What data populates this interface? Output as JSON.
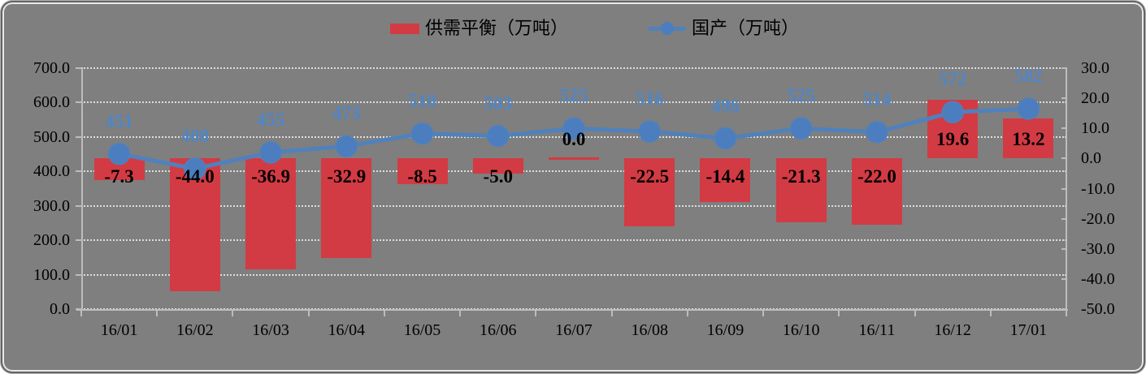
{
  "legend": {
    "items": [
      {
        "label": "供需平衡（万吨）",
        "type": "bar"
      },
      {
        "label": "国产（万吨）",
        "type": "line"
      }
    ]
  },
  "chart_data": {
    "type": "combo",
    "categories": [
      "16/01",
      "16/02",
      "16/03",
      "16/04",
      "16/05",
      "16/06",
      "16/07",
      "16/08",
      "16/09",
      "16/10",
      "16/11",
      "16/12",
      "17/01"
    ],
    "series": [
      {
        "name": "供需平衡（万吨）",
        "type": "bar",
        "axis": "right",
        "values": [
          -7.3,
          -44.0,
          -36.9,
          -32.9,
          -8.5,
          -5.0,
          0.0,
          -22.5,
          -14.4,
          -21.3,
          -22.0,
          19.6,
          13.2
        ],
        "label_decimals": 1
      },
      {
        "name": "国产（万吨）",
        "type": "line",
        "axis": "left",
        "values": [
          451,
          408,
          455,
          473,
          510,
          503,
          525,
          516,
          496,
          525,
          514,
          572,
          582
        ],
        "label_decimals": 0
      }
    ],
    "left_axis": {
      "min": 0,
      "max": 700,
      "step": 100,
      "tick_labels": [
        "0.0",
        "100.0",
        "200.0",
        "300.0",
        "400.0",
        "500.0",
        "600.0",
        "700.0"
      ]
    },
    "right_axis": {
      "min": -50,
      "max": 30,
      "step": 10,
      "tick_labels": [
        "-50.0",
        "-40.0",
        "-30.0",
        "-20.0",
        "-10.0",
        "0.0",
        "10.0",
        "20.0",
        "30.0"
      ]
    },
    "grid": true,
    "legend_position": "top-center"
  },
  "colors": {
    "background": "#7F7F7F",
    "bar": "#D23B43",
    "line": "#4F81BD",
    "marker": "#4C7EBF",
    "line_label": "#4E86C8",
    "bar_label": "#000000",
    "gridline": "#DEDEDE",
    "axis_line": "#BDBDBD",
    "axis_text": "#000000"
  }
}
